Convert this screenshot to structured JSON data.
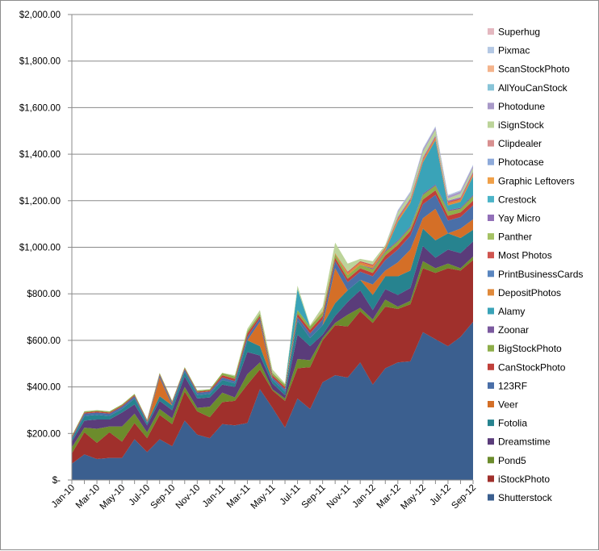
{
  "chart_data": {
    "type": "area",
    "stacked": true,
    "ylim": [
      0,
      2000
    ],
    "y_ticks": [
      "$-",
      "$200.00",
      "$400.00",
      "$600.00",
      "$800.00",
      "$1,000.00",
      "$1,200.00",
      "$1,400.00",
      "$1,600.00",
      "$1,800.00",
      "$2,000.00"
    ],
    "y_tick_values": [
      0,
      200,
      400,
      600,
      800,
      1000,
      1200,
      1400,
      1600,
      1800,
      2000
    ],
    "x": [
      "Jan-10",
      "Feb-10",
      "Mar-10",
      "Apr-10",
      "May-10",
      "Jun-10",
      "Jul-10",
      "Aug-10",
      "Sep-10",
      "Oct-10",
      "Nov-10",
      "Dec-10",
      "Jan-11",
      "Feb-11",
      "Mar-11",
      "Apr-11",
      "May-11",
      "Jun-11",
      "Jul-11",
      "Aug-11",
      "Sep-11",
      "Oct-11",
      "Nov-11",
      "Dec-11",
      "Jan-12",
      "Feb-12",
      "Mar-12",
      "Apr-12",
      "May-12",
      "Jun-12",
      "Jul-12",
      "Aug-12",
      "Sep-12"
    ],
    "x_tick_labels": [
      "Jan-10",
      "Mar-10",
      "May-10",
      "Jul-10",
      "Sep-10",
      "Nov-10",
      "Jan-11",
      "Mar-11",
      "May-11",
      "Jul-11",
      "Sep-11",
      "Nov-11",
      "Jan-12",
      "Mar-12",
      "May-12",
      "Jul-12",
      "Sep-12"
    ],
    "legend_position": "right",
    "grid": "horizontal",
    "series": [
      {
        "name": "Shutterstock",
        "color": "#3B5F8F",
        "values": [
          70,
          110,
          90,
          95,
          95,
          175,
          120,
          175,
          145,
          255,
          195,
          180,
          240,
          235,
          245,
          390,
          310,
          225,
          350,
          305,
          420,
          450,
          440,
          505,
          410,
          480,
          505,
          510,
          635,
          605,
          575,
          615,
          680
        ]
      },
      {
        "name": "iStockPhoto",
        "color": "#A0302C",
        "values": [
          45,
          95,
          70,
          110,
          70,
          70,
          60,
          105,
          95,
          125,
          100,
          90,
          95,
          105,
          165,
          85,
          75,
          115,
          130,
          180,
          180,
          215,
          220,
          220,
          265,
          265,
          230,
          245,
          275,
          285,
          335,
          285,
          265
        ]
      },
      {
        "name": "Pond5",
        "color": "#6C8C2C",
        "values": [
          25,
          20,
          60,
          25,
          65,
          40,
          25,
          25,
          25,
          20,
          15,
          45,
          40,
          15,
          45,
          30,
          5,
          10,
          40,
          30,
          10,
          10,
          50,
          15,
          15,
          30,
          10,
          15,
          30,
          20,
          20,
          10,
          15
        ]
      },
      {
        "name": "Dreamstime",
        "color": "#5A3C7A",
        "values": [
          25,
          30,
          40,
          30,
          60,
          40,
          30,
          35,
          35,
          45,
          40,
          40,
          35,
          45,
          95,
          30,
          25,
          15,
          105,
          60,
          15,
          30,
          55,
          75,
          40,
          45,
          50,
          55,
          65,
          45,
          60,
          65,
          65
        ]
      },
      {
        "name": "Fotolia",
        "color": "#27838F",
        "values": [
          10,
          20,
          20,
          15,
          15,
          25,
          10,
          20,
          20,
          20,
          15,
          15,
          20,
          15,
          50,
          40,
          15,
          15,
          60,
          35,
          40,
          55,
          50,
          45,
          65,
          55,
          80,
          75,
          75,
          75,
          70,
          65,
          50
        ]
      },
      {
        "name": "Veer",
        "color": "#D46F27",
        "values": [
          0,
          0,
          0,
          0,
          0,
          0,
          0,
          80,
          0,
          0,
          0,
          0,
          0,
          0,
          0,
          105,
          0,
          0,
          0,
          0,
          0,
          150,
          0,
          0,
          45,
          25,
          60,
          90,
          45,
          135,
          0,
          40,
          45
        ]
      },
      {
        "name": "123RF",
        "color": "#4A6FA8",
        "values": [
          5,
          10,
          10,
          10,
          10,
          10,
          5,
          10,
          10,
          10,
          10,
          10,
          10,
          10,
          15,
          15,
          10,
          10,
          15,
          20,
          25,
          30,
          35,
          35,
          35,
          45,
          55,
          60,
          60,
          60,
          55,
          50,
          60
        ]
      },
      {
        "name": "CanStockPhoto",
        "color": "#C0403A",
        "values": [
          5,
          5,
          5,
          5,
          5,
          5,
          5,
          5,
          5,
          5,
          5,
          5,
          10,
          10,
          15,
          10,
          10,
          10,
          15,
          15,
          15,
          15,
          15,
          15,
          15,
          20,
          20,
          20,
          20,
          20,
          20,
          20,
          20
        ]
      },
      {
        "name": "BigStockPhoto",
        "color": "#8EAE4A",
        "values": [
          5,
          5,
          5,
          5,
          5,
          5,
          5,
          5,
          5,
          5,
          5,
          5,
          10,
          10,
          10,
          10,
          10,
          10,
          15,
          15,
          15,
          15,
          15,
          15,
          15,
          15,
          15,
          15,
          20,
          20,
          20,
          15,
          20
        ]
      },
      {
        "name": "Zoonar",
        "color": "#7B5A9F",
        "values": [
          0,
          0,
          0,
          0,
          0,
          0,
          0,
          0,
          0,
          0,
          0,
          0,
          0,
          0,
          0,
          0,
          0,
          0,
          0,
          0,
          0,
          0,
          0,
          0,
          5,
          5,
          5,
          5,
          5,
          5,
          5,
          5,
          5
        ]
      },
      {
        "name": "Alamy",
        "color": "#3AA3B8",
        "values": [
          0,
          0,
          0,
          0,
          0,
          0,
          0,
          0,
          0,
          0,
          0,
          0,
          0,
          0,
          0,
          0,
          0,
          0,
          90,
          0,
          0,
          0,
          0,
          0,
          0,
          0,
          80,
          100,
          135,
          190,
          20,
          25,
          80
        ]
      },
      {
        "name": "DepositPhotos",
        "color": "#E08A3C",
        "values": [
          0,
          0,
          0,
          0,
          0,
          0,
          0,
          0,
          0,
          0,
          0,
          0,
          0,
          0,
          0,
          0,
          0,
          0,
          0,
          0,
          5,
          5,
          10,
          10,
          10,
          10,
          10,
          10,
          10,
          10,
          10,
          10,
          10
        ]
      },
      {
        "name": "PrintBusinessCards",
        "color": "#5A86C0",
        "values": [
          0,
          0,
          0,
          0,
          0,
          0,
          0,
          0,
          0,
          0,
          0,
          0,
          0,
          0,
          0,
          0,
          0,
          0,
          0,
          0,
          0,
          0,
          0,
          0,
          0,
          0,
          0,
          0,
          0,
          0,
          0,
          0,
          0
        ]
      },
      {
        "name": "Most Photos",
        "color": "#D05550",
        "values": [
          0,
          0,
          0,
          0,
          0,
          0,
          0,
          0,
          0,
          0,
          0,
          0,
          0,
          0,
          0,
          0,
          0,
          0,
          0,
          0,
          0,
          0,
          5,
          5,
          5,
          5,
          5,
          5,
          5,
          5,
          5,
          5,
          5
        ]
      },
      {
        "name": "Panther",
        "color": "#A5C264",
        "values": [
          0,
          0,
          0,
          0,
          0,
          0,
          0,
          0,
          0,
          0,
          0,
          0,
          0,
          0,
          0,
          0,
          0,
          0,
          0,
          0,
          0,
          0,
          0,
          0,
          0,
          0,
          0,
          0,
          0,
          0,
          0,
          0,
          0
        ]
      },
      {
        "name": "Yay Micro",
        "color": "#9270B8",
        "values": [
          0,
          0,
          0,
          0,
          0,
          0,
          0,
          0,
          0,
          0,
          0,
          0,
          0,
          0,
          0,
          0,
          0,
          0,
          0,
          0,
          0,
          0,
          0,
          0,
          0,
          0,
          5,
          5,
          5,
          5,
          5,
          5,
          5
        ]
      },
      {
        "name": "Crestock",
        "color": "#4CB4C8",
        "values": [
          0,
          0,
          0,
          0,
          0,
          0,
          0,
          0,
          0,
          0,
          0,
          0,
          0,
          0,
          0,
          0,
          0,
          0,
          0,
          0,
          0,
          0,
          0,
          0,
          0,
          0,
          0,
          0,
          0,
          0,
          0,
          0,
          0
        ]
      },
      {
        "name": "Graphic Leftovers",
        "color": "#F0A048",
        "values": [
          0,
          0,
          0,
          0,
          0,
          0,
          0,
          0,
          0,
          0,
          0,
          0,
          0,
          0,
          0,
          0,
          0,
          0,
          0,
          0,
          0,
          0,
          0,
          0,
          0,
          0,
          0,
          0,
          0,
          0,
          0,
          0,
          0
        ]
      },
      {
        "name": "Photocase",
        "color": "#8EAADA",
        "values": [
          0,
          0,
          0,
          0,
          0,
          0,
          0,
          0,
          0,
          0,
          0,
          0,
          0,
          0,
          0,
          0,
          0,
          0,
          0,
          0,
          0,
          0,
          0,
          0,
          0,
          0,
          0,
          0,
          0,
          0,
          0,
          0,
          0
        ]
      },
      {
        "name": "Clipdealer",
        "color": "#D89090",
        "values": [
          0,
          0,
          0,
          0,
          0,
          0,
          0,
          0,
          0,
          0,
          0,
          0,
          0,
          0,
          0,
          0,
          0,
          0,
          0,
          0,
          0,
          0,
          0,
          0,
          0,
          0,
          0,
          0,
          0,
          0,
          0,
          0,
          0
        ]
      },
      {
        "name": "iSignStock",
        "color": "#BCD49A",
        "values": [
          0,
          0,
          0,
          0,
          0,
          0,
          0,
          0,
          0,
          0,
          0,
          0,
          0,
          5,
          10,
          15,
          15,
          5,
          15,
          5,
          20,
          45,
          35,
          10,
          15,
          10,
          20,
          20,
          25,
          25,
          10,
          15,
          15
        ]
      },
      {
        "name": "Photodune",
        "color": "#A899C8",
        "values": [
          0,
          0,
          0,
          0,
          0,
          0,
          0,
          0,
          0,
          0,
          0,
          0,
          0,
          0,
          0,
          0,
          0,
          0,
          0,
          0,
          0,
          0,
          0,
          0,
          0,
          0,
          5,
          5,
          10,
          10,
          10,
          10,
          10
        ]
      },
      {
        "name": "AllYouCanStock",
        "color": "#88C4D8",
        "values": [
          0,
          0,
          0,
          0,
          0,
          0,
          0,
          0,
          0,
          0,
          0,
          0,
          0,
          0,
          0,
          0,
          0,
          0,
          0,
          0,
          0,
          0,
          0,
          0,
          0,
          0,
          0,
          0,
          0,
          0,
          0,
          0,
          0
        ]
      },
      {
        "name": "ScanStockPhoto",
        "color": "#F4B48C",
        "values": [
          0,
          0,
          0,
          0,
          0,
          0,
          0,
          0,
          0,
          0,
          0,
          0,
          0,
          0,
          0,
          0,
          0,
          0,
          0,
          0,
          0,
          0,
          0,
          0,
          0,
          0,
          0,
          0,
          0,
          0,
          0,
          0,
          0
        ]
      },
      {
        "name": "Pixmac",
        "color": "#B4C8E4",
        "values": [
          0,
          0,
          0,
          0,
          0,
          0,
          0,
          0,
          0,
          0,
          0,
          0,
          0,
          0,
          0,
          0,
          0,
          0,
          0,
          0,
          0,
          0,
          0,
          0,
          0,
          0,
          5,
          5,
          5,
          5,
          5,
          5,
          5
        ]
      },
      {
        "name": "Superhug",
        "color": "#E4B8C0",
        "values": [
          0,
          0,
          0,
          0,
          0,
          0,
          0,
          0,
          0,
          0,
          0,
          0,
          0,
          0,
          0,
          0,
          0,
          0,
          0,
          0,
          0,
          0,
          0,
          0,
          0,
          0,
          0,
          0,
          0,
          0,
          0,
          0,
          0
        ]
      }
    ]
  }
}
